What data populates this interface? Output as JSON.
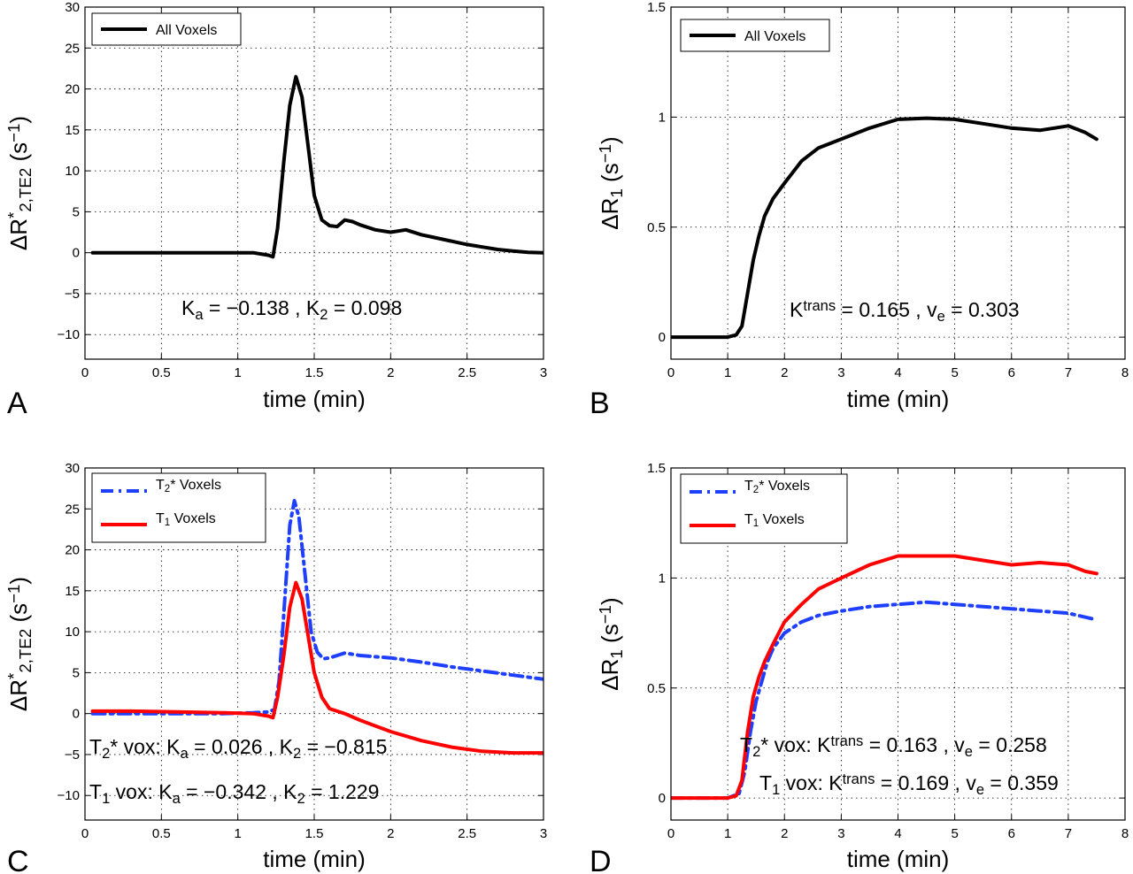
{
  "chart_data": [
    {
      "panel_label": "A",
      "type": "line",
      "xlabel": "time (min)",
      "ylabel": {
        "main": "ΔR",
        "sup": "*",
        "sub": "2,TE2",
        "unit_open": " (s",
        "unit_sup": "−1",
        "unit_close": ")"
      },
      "xlim": [
        0,
        3
      ],
      "ylim": [
        -13,
        30
      ],
      "xticks": [
        "0",
        "0.5",
        "1",
        "1.5",
        "2",
        "2.5",
        "3"
      ],
      "yticks": [
        "−10",
        "−5",
        "0",
        "5",
        "10",
        "15",
        "20",
        "25",
        "30"
      ],
      "grid": true,
      "legend_position": "top-left",
      "series": [
        {
          "name": "All Voxels",
          "color": "#000000",
          "style": "solid",
          "x": [
            0.05,
            0.2,
            0.4,
            0.6,
            0.8,
            1.0,
            1.1,
            1.2,
            1.23,
            1.26,
            1.3,
            1.34,
            1.38,
            1.42,
            1.46,
            1.5,
            1.55,
            1.6,
            1.65,
            1.7,
            1.75,
            1.8,
            1.9,
            2.0,
            2.1,
            2.2,
            2.3,
            2.4,
            2.5,
            2.6,
            2.7,
            2.8,
            2.9,
            3.0
          ],
          "y": [
            0,
            0,
            0,
            0,
            0,
            0,
            0,
            -0.3,
            -0.5,
            3,
            11,
            18,
            21.5,
            19,
            13,
            7,
            4,
            3.3,
            3.2,
            4,
            3.8,
            3.4,
            2.8,
            2.5,
            2.8,
            2.2,
            1.8,
            1.4,
            1.0,
            0.7,
            0.4,
            0.2,
            0.05,
            0.0
          ]
        }
      ],
      "annotations": [
        {
          "parts": [
            [
              "K",
              ""
            ],
            [
              "a",
              "sub"
            ],
            [
              " = −0.138 , K",
              ""
            ],
            [
              "2",
              "sub"
            ],
            [
              " = 0.098",
              ""
            ]
          ]
        }
      ]
    },
    {
      "panel_label": "B",
      "type": "line",
      "xlabel": "time (min)",
      "ylabel": {
        "main": "ΔR",
        "sup": "",
        "sub": "1",
        "unit_open": " (s",
        "unit_sup": "−1",
        "unit_close": ")"
      },
      "xlim": [
        0,
        8
      ],
      "ylim": [
        -0.1,
        1.5
      ],
      "xticks": [
        "0",
        "1",
        "2",
        "3",
        "4",
        "5",
        "6",
        "7",
        "8"
      ],
      "yticks": [
        "0",
        "0.5",
        "1",
        "1.5"
      ],
      "grid": true,
      "legend_position": "top-left",
      "series": [
        {
          "name": "All Voxels",
          "color": "#000000",
          "style": "solid",
          "x": [
            0,
            0.5,
            1.0,
            1.15,
            1.25,
            1.35,
            1.45,
            1.55,
            1.65,
            1.8,
            2.0,
            2.3,
            2.6,
            3.0,
            3.5,
            4.0,
            4.5,
            5.0,
            5.5,
            6.0,
            6.5,
            7.0,
            7.3,
            7.5
          ],
          "y": [
            0,
            0,
            0,
            0.01,
            0.05,
            0.2,
            0.35,
            0.46,
            0.55,
            0.63,
            0.7,
            0.8,
            0.86,
            0.9,
            0.95,
            0.99,
            0.995,
            0.99,
            0.97,
            0.95,
            0.94,
            0.96,
            0.93,
            0.9
          ]
        }
      ],
      "annotations": [
        {
          "parts": [
            [
              "K",
              ""
            ],
            [
              "trans",
              "sup"
            ],
            [
              " = 0.165 , v",
              ""
            ],
            [
              "e",
              "sub"
            ],
            [
              " = 0.303",
              ""
            ]
          ]
        }
      ]
    },
    {
      "panel_label": "C",
      "type": "line",
      "xlabel": "time (min)",
      "ylabel": {
        "main": "ΔR",
        "sup": "*",
        "sub": "2,TE2",
        "unit_open": " (s",
        "unit_sup": "−1",
        "unit_close": ")"
      },
      "xlim": [
        0,
        3
      ],
      "ylim": [
        -13,
        30
      ],
      "xticks": [
        "0",
        "0.5",
        "1",
        "1.5",
        "2",
        "2.5",
        "3"
      ],
      "yticks": [
        "−10",
        "−5",
        "0",
        "5",
        "10",
        "15",
        "20",
        "25",
        "30"
      ],
      "grid": true,
      "legend_position": "top-left",
      "series": [
        {
          "name_parts": [
            [
              "T",
              ""
            ],
            [
              "2",
              "sub"
            ],
            [
              "* Voxels",
              ""
            ]
          ],
          "color": "#1f3fff",
          "style": "dashdot",
          "x": [
            0.05,
            0.3,
            0.6,
            0.9,
            1.1,
            1.2,
            1.24,
            1.27,
            1.3,
            1.34,
            1.37,
            1.4,
            1.44,
            1.48,
            1.52,
            1.56,
            1.6,
            1.7,
            1.8,
            2.0,
            2.2,
            2.4,
            2.6,
            2.8,
            3.0
          ],
          "y": [
            0,
            0,
            0,
            0,
            0.1,
            0.2,
            0.5,
            4,
            12,
            23,
            26,
            24,
            17,
            10,
            7.5,
            6.7,
            6.8,
            7.4,
            7.1,
            6.8,
            6.3,
            5.7,
            5.2,
            4.7,
            4.2
          ]
        },
        {
          "name_parts": [
            [
              "T",
              ""
            ],
            [
              "1",
              "sub"
            ],
            [
              " Voxels",
              ""
            ]
          ],
          "color": "#ff0000",
          "style": "solid",
          "x": [
            0.05,
            0.3,
            0.6,
            0.9,
            1.1,
            1.2,
            1.23,
            1.26,
            1.3,
            1.34,
            1.38,
            1.42,
            1.46,
            1.5,
            1.55,
            1.6,
            1.7,
            1.8,
            1.9,
            2.0,
            2.2,
            2.4,
            2.6,
            2.8,
            3.0
          ],
          "y": [
            0.3,
            0.3,
            0.2,
            0.1,
            0,
            -0.3,
            -0.5,
            2,
            7,
            13,
            16,
            14,
            9.5,
            5,
            2,
            0.6,
            0,
            -0.8,
            -1.5,
            -2.2,
            -3.3,
            -4.1,
            -4.6,
            -4.8,
            -4.8
          ]
        }
      ],
      "annotations": [
        {
          "parts": [
            [
              "T",
              ""
            ],
            [
              "2",
              "sub"
            ],
            [
              "* vox: K",
              ""
            ],
            [
              "a",
              "sub"
            ],
            [
              " = 0.026 , K",
              ""
            ],
            [
              "2",
              "sub"
            ],
            [
              " = −0.815",
              ""
            ]
          ]
        },
        {
          "parts": [
            [
              "T",
              ""
            ],
            [
              "1",
              "sub"
            ],
            [
              " vox: K",
              ""
            ],
            [
              "a",
              "sub"
            ],
            [
              " = −0.342 , K",
              ""
            ],
            [
              "2",
              "sub"
            ],
            [
              " = 1.229",
              ""
            ]
          ]
        }
      ]
    },
    {
      "panel_label": "D",
      "type": "line",
      "xlabel": "time (min)",
      "ylabel": {
        "main": "ΔR",
        "sup": "",
        "sub": "1",
        "unit_open": " (s",
        "unit_sup": "−1",
        "unit_close": ")"
      },
      "xlim": [
        0,
        8
      ],
      "ylim": [
        -0.1,
        1.5
      ],
      "xticks": [
        "0",
        "1",
        "2",
        "3",
        "4",
        "5",
        "6",
        "7",
        "8"
      ],
      "yticks": [
        "0",
        "0.5",
        "1",
        "1.5"
      ],
      "grid": true,
      "legend_position": "top-left",
      "series": [
        {
          "name_parts": [
            [
              "T",
              ""
            ],
            [
              "2",
              "sub"
            ],
            [
              "* Voxels",
              ""
            ]
          ],
          "color": "#1f3fff",
          "style": "dashdot",
          "x": [
            0,
            0.5,
            1.0,
            1.2,
            1.3,
            1.4,
            1.5,
            1.6,
            1.7,
            1.8,
            2.0,
            2.3,
            2.6,
            3.0,
            3.5,
            4.0,
            4.5,
            5.0,
            5.5,
            6.0,
            6.5,
            7.0,
            7.5
          ],
          "y": [
            0,
            0,
            0,
            0.02,
            0.12,
            0.3,
            0.44,
            0.53,
            0.62,
            0.68,
            0.75,
            0.8,
            0.83,
            0.85,
            0.87,
            0.88,
            0.89,
            0.88,
            0.87,
            0.86,
            0.85,
            0.84,
            0.81
          ]
        },
        {
          "name_parts": [
            [
              "T",
              ""
            ],
            [
              "1",
              "sub"
            ],
            [
              " Voxels",
              ""
            ]
          ],
          "color": "#ff0000",
          "style": "solid",
          "x": [
            0,
            0.5,
            1.0,
            1.15,
            1.25,
            1.35,
            1.45,
            1.55,
            1.65,
            1.8,
            2.0,
            2.3,
            2.6,
            3.0,
            3.5,
            4.0,
            4.5,
            5.0,
            5.5,
            6.0,
            6.5,
            7.0,
            7.3,
            7.5
          ],
          "y": [
            0,
            0,
            0,
            0.01,
            0.08,
            0.3,
            0.46,
            0.55,
            0.62,
            0.7,
            0.8,
            0.88,
            0.95,
            1.0,
            1.06,
            1.1,
            1.1,
            1.1,
            1.08,
            1.06,
            1.07,
            1.06,
            1.03,
            1.02
          ]
        }
      ],
      "annotations": [
        {
          "parts": [
            [
              "T",
              ""
            ],
            [
              "2",
              "sub"
            ],
            [
              "* vox: K",
              ""
            ],
            [
              "trans",
              "sup"
            ],
            [
              " = 0.163 , v",
              ""
            ],
            [
              "e",
              "sub"
            ],
            [
              " = 0.258",
              ""
            ]
          ]
        },
        {
          "parts": [
            [
              "T",
              ""
            ],
            [
              "1",
              "sub"
            ],
            [
              " vox: K",
              ""
            ],
            [
              "trans",
              "sup"
            ],
            [
              " = 0.169 , v",
              ""
            ],
            [
              "e",
              "sub"
            ],
            [
              " = 0.359",
              ""
            ]
          ]
        }
      ]
    }
  ]
}
